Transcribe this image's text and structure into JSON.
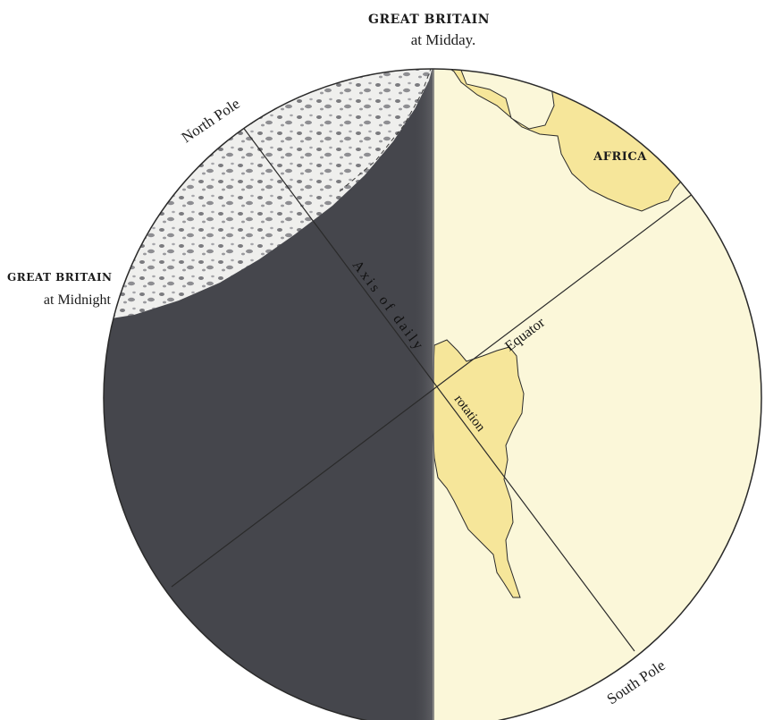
{
  "labels": {
    "gb_midday_title": "GREAT BRITAIN",
    "gb_midday_sub": "at Midday.",
    "gb_midnight_title": "GREAT BRITAIN",
    "gb_midnight_sub": "at Midnight",
    "north_pole": "North Pole",
    "south_pole": "South Pole",
    "africa": "AFRICA",
    "equator": "Equator",
    "axis_line1": "Axis of daily",
    "axis_line2": "rotation"
  },
  "colors": {
    "paper": "#ffffff",
    "day_side": "#fbf7d9",
    "night_side": "#45464c",
    "land": "#f6e69a",
    "ice": "#f2f2f0",
    "line": "#2a2a2a"
  }
}
